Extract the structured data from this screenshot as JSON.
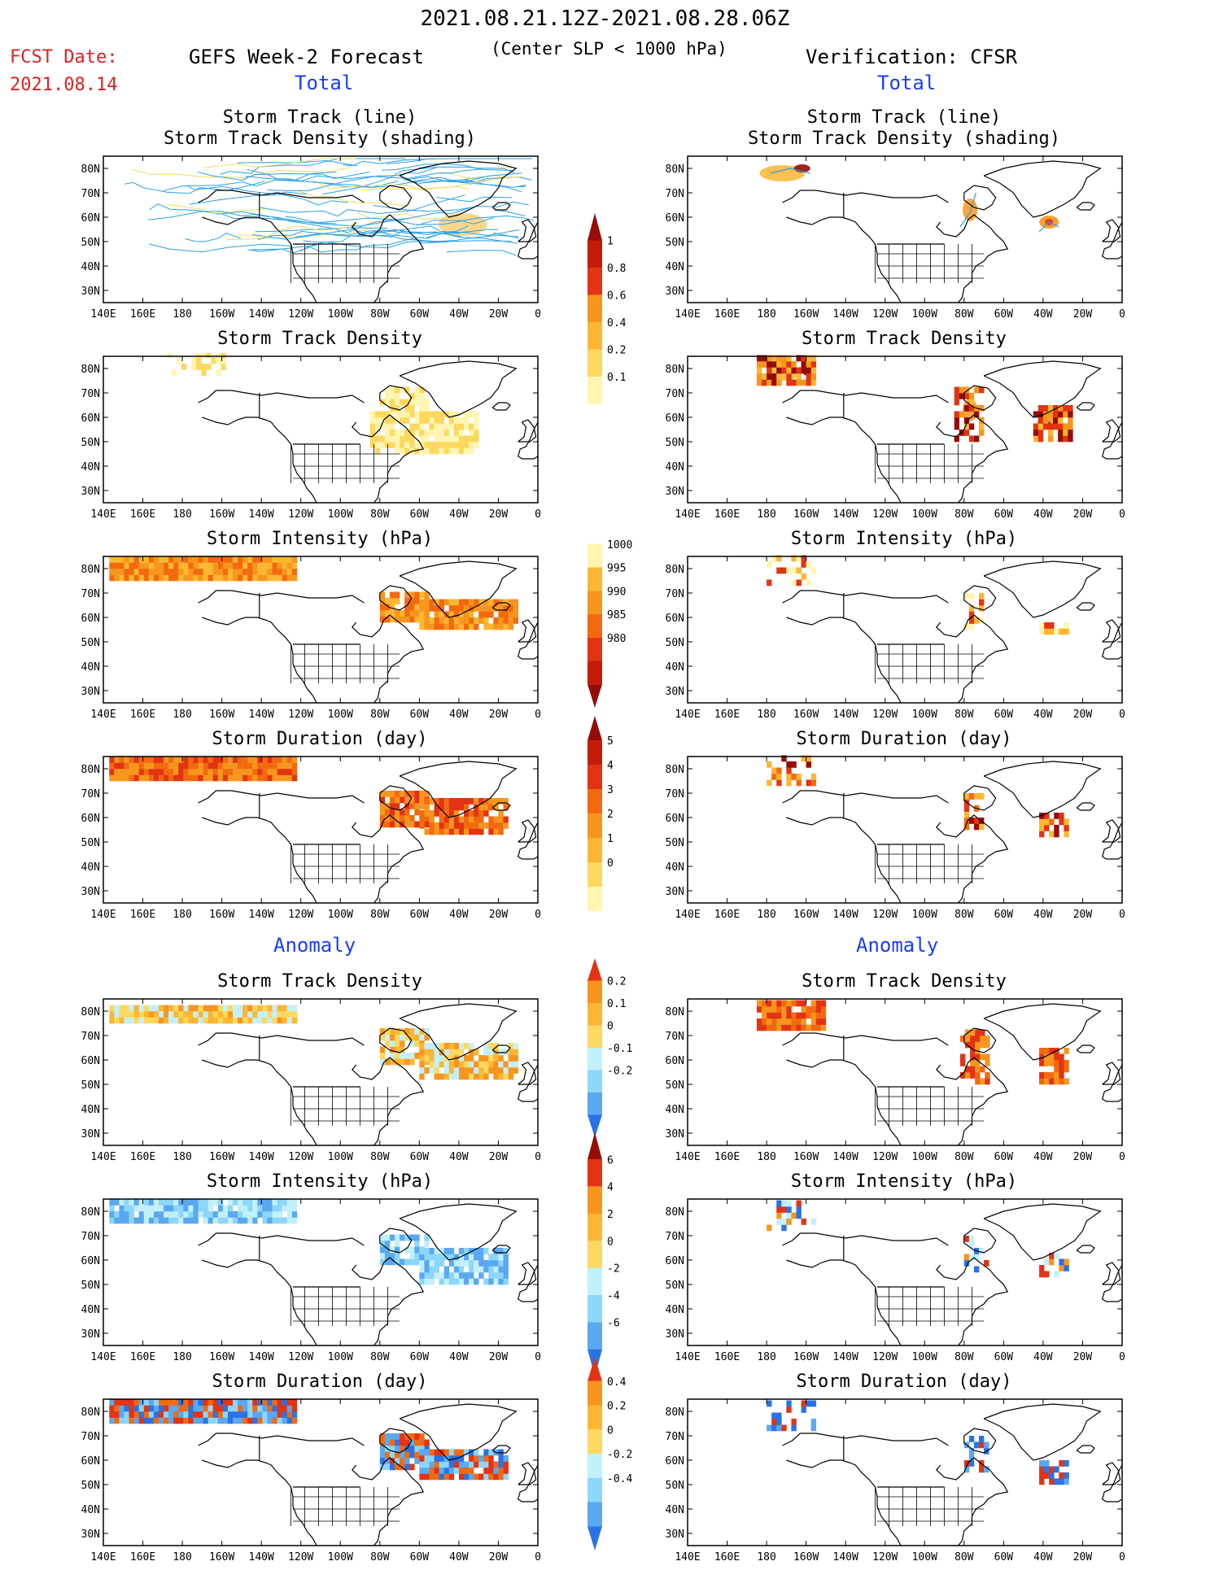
{
  "header": {
    "date_range": "2021.08.21.12Z-2021.08.28.06Z",
    "slp_note": "(Center SLP < 1000 hPa)",
    "fcst_label": "FCST Date:",
    "fcst_date": "2021.08.14",
    "left_title": "GEFS Week-2 Forecast",
    "right_title": "Verification: CFSR",
    "total_label": "Total",
    "anomaly_label": "Anomaly"
  },
  "panel_titles": {
    "track_line": "Storm Track (line)",
    "track_shading": "Storm Track Density (shading)",
    "density": "Storm Track Density",
    "intensity": "Storm Intensity (hPa)",
    "duration": "Storm Duration (day)"
  },
  "axes": {
    "lat_labels": [
      "80N",
      "70N",
      "60N",
      "50N",
      "40N",
      "30N"
    ],
    "lon_labels": [
      "140E",
      "160E",
      "180",
      "160W",
      "140W",
      "120W",
      "100W",
      "80W",
      "60W",
      "40W",
      "20W",
      "0"
    ]
  },
  "colorbars": {
    "density": {
      "labels": [
        "1",
        "0.8",
        "0.6",
        "0.4",
        "0.2",
        "0.1"
      ]
    },
    "intensity": {
      "labels": [
        "1000",
        "995",
        "990",
        "985",
        "980"
      ]
    },
    "duration": {
      "labels": [
        "5",
        "4",
        "3",
        "2",
        "1",
        "0"
      ]
    },
    "density_anom": {
      "labels": [
        "0.2",
        "0.1",
        "0",
        "-0.1",
        "-0.2"
      ]
    },
    "intensity_anom": {
      "labels": [
        "6",
        "4",
        "2",
        "0",
        "-2",
        "-4",
        "-6"
      ]
    },
    "duration_anom": {
      "labels": [
        "0.4",
        "0.2",
        "0",
        "-0.2",
        "-0.4"
      ]
    }
  },
  "colors": {
    "yellow_light": "#fff5b0",
    "yellow": "#fcd860",
    "orange_light": "#fcb632",
    "orange": "#f7961e",
    "orange_dark": "#f26a10",
    "red": "#e23414",
    "red_dark": "#c41c0c",
    "maroon": "#960c06",
    "cyan_light": "#c2f0fa",
    "cyan": "#8cd6f7",
    "blue_light": "#5aa8f0",
    "blue": "#2a72e6",
    "track_blue": "#28a0e6",
    "track_yellow": "#f0dc5a",
    "title_red": "#e02020",
    "title_blue": "#1a3cff"
  },
  "chart_data": {
    "type": "heatmap",
    "note": "Map panels with colour-shaded storm statistics over North America and the North Atlantic",
    "xlim": [
      "140E",
      "0"
    ],
    "ylim": [
      "25N",
      "85N"
    ],
    "panels": [
      {
        "id": "fc-track",
        "column": "GEFS Week-2 Forecast",
        "field": "Storm Track (line) / Storm Track Density (shading)"
      },
      {
        "id": "fc-density",
        "column": "GEFS Week-2 Forecast",
        "field": "Storm Track Density"
      },
      {
        "id": "fc-intensity",
        "column": "GEFS Week-2 Forecast",
        "field": "Storm Intensity (hPa)"
      },
      {
        "id": "fc-duration",
        "column": "GEFS Week-2 Forecast",
        "field": "Storm Duration (day)"
      },
      {
        "id": "fc-density-anom",
        "column": "GEFS Week-2 Forecast",
        "field": "Storm Track Density anomaly"
      },
      {
        "id": "fc-intensity-anom",
        "column": "GEFS Week-2 Forecast",
        "field": "Storm Intensity anomaly (hPa)"
      },
      {
        "id": "fc-duration-anom",
        "column": "GEFS Week-2 Forecast",
        "field": "Storm Duration anomaly (day)"
      },
      {
        "id": "vf-track",
        "column": "Verification: CFSR",
        "field": "Storm Track (line) / Storm Track Density (shading)"
      },
      {
        "id": "vf-density",
        "column": "Verification: CFSR",
        "field": "Storm Track Density"
      },
      {
        "id": "vf-intensity",
        "column": "Verification: CFSR",
        "field": "Storm Intensity (hPa)"
      },
      {
        "id": "vf-duration",
        "column": "Verification: CFSR",
        "field": "Storm Duration (day)"
      },
      {
        "id": "vf-density-anom",
        "column": "Verification: CFSR",
        "field": "Storm Track Density anomaly"
      },
      {
        "id": "vf-intensity-anom",
        "column": "Verification: CFSR",
        "field": "Storm Intensity anomaly (hPa)"
      },
      {
        "id": "vf-duration-anom",
        "column": "Verification: CFSR",
        "field": "Storm Duration anomaly (day)"
      }
    ]
  }
}
